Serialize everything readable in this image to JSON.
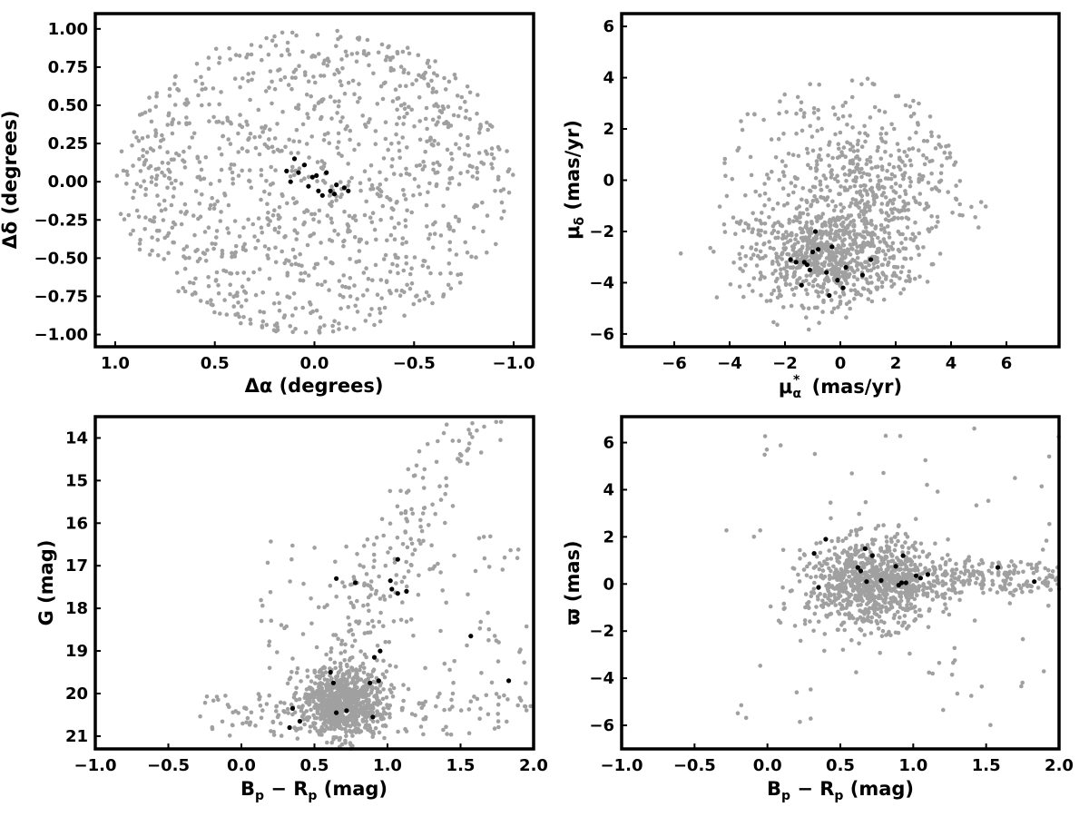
{
  "chart_data": [
    {
      "type": "scatter",
      "title": "",
      "xlabel": "Δα (degrees)",
      "ylabel": "Δδ (degrees)",
      "xlim": [
        1.1,
        -1.1
      ],
      "ylim": [
        -1.08,
        1.1
      ],
      "xticks": [
        {
          "v": 1.0,
          "label": "1.0"
        },
        {
          "v": 0.5,
          "label": "0.5"
        },
        {
          "v": 0.0,
          "label": "0.0"
        },
        {
          "v": -0.5,
          "label": "−0.5"
        },
        {
          "v": -1.0,
          "label": "−1.0"
        }
      ],
      "yticks": [
        {
          "v": 1.0,
          "label": "1.00"
        },
        {
          "v": 0.75,
          "label": "0.75"
        },
        {
          "v": 0.5,
          "label": "0.50"
        },
        {
          "v": 0.25,
          "label": "0.25"
        },
        {
          "v": 0.0,
          "label": "0.00"
        },
        {
          "v": -0.25,
          "label": "−0.25"
        },
        {
          "v": -0.5,
          "label": "−0.50"
        },
        {
          "v": -0.75,
          "label": "−0.75"
        },
        {
          "v": -1.0,
          "label": "−1.00"
        }
      ],
      "grid": false,
      "series": [
        {
          "color": "#a0a0a0",
          "marker_size": 2.3,
          "approximate_distribution": {
            "shape": "uniform disk",
            "center": [
              0,
              0
            ],
            "radius": 1.0,
            "n_points": 1100
          }
        },
        {
          "color": "#000000",
          "marker_size": 2.6,
          "x": [
            0.14,
            0.12,
            0.1,
            0.08,
            0.05,
            0.03,
            0.01,
            -0.01,
            -0.02,
            -0.04,
            -0.06,
            -0.08,
            -0.1,
            -0.11,
            -0.15,
            -0.17
          ],
          "y": [
            0.07,
            0.0,
            0.15,
            0.06,
            0.11,
            -0.03,
            0.03,
            0.04,
            -0.06,
            -0.09,
            0.06,
            -0.06,
            -0.08,
            -0.02,
            -0.04,
            -0.06
          ]
        }
      ]
    },
    {
      "type": "scatter",
      "title": "",
      "xlabel": "μα* (mas/yr)",
      "ylabel": "μδ (mas/yr)",
      "xlim": [
        -7.9,
        7.9
      ],
      "ylim": [
        -6.5,
        6.5
      ],
      "xticks": [
        {
          "v": -6,
          "label": "−6"
        },
        {
          "v": -4,
          "label": "−4"
        },
        {
          "v": -2,
          "label": "−2"
        },
        {
          "v": 0,
          "label": "0"
        },
        {
          "v": 2,
          "label": "2"
        },
        {
          "v": 4,
          "label": "4"
        },
        {
          "v": 6,
          "label": "6"
        }
      ],
      "yticks": [
        {
          "v": 6,
          "label": "6"
        },
        {
          "v": 4,
          "label": "4"
        },
        {
          "v": 2,
          "label": "2"
        },
        {
          "v": 0,
          "label": "0"
        },
        {
          "v": -2,
          "label": "−2"
        },
        {
          "v": -4,
          "label": "−4"
        },
        {
          "v": -6,
          "label": "−6"
        }
      ],
      "grid": false,
      "series": [
        {
          "color": "#a0a0a0",
          "marker_size": 2.3,
          "approximate_distribution": [
            {
              "shape": "gaussian clump",
              "center": [
                -0.5,
                -3.0
              ],
              "sigma": [
                1.4,
                0.9
              ],
              "n_points": 650
            },
            {
              "shape": "gaussian clump",
              "center": [
                0.8,
                -0.5
              ],
              "sigma": [
                1.5,
                1.3
              ],
              "n_points": 350
            },
            {
              "shape": "uniform disk",
              "center": [
                0.0,
                -0.5
              ],
              "radius": 4.6,
              "ymin": -5.0,
              "n_points": 250
            }
          ]
        },
        {
          "color": "#000000",
          "marker_size": 2.6,
          "x": [
            -1.8,
            -1.6,
            -1.4,
            -1.3,
            -1.2,
            -1.1,
            -1.0,
            -0.9,
            -0.8,
            -0.5,
            -0.4,
            -0.3,
            -0.1,
            0.1,
            0.2,
            0.8,
            1.1
          ],
          "y": [
            -3.1,
            -3.2,
            -4.1,
            -3.2,
            -3.3,
            -3.5,
            -2.8,
            -2.0,
            -2.7,
            -3.6,
            -4.5,
            -2.6,
            -3.9,
            -4.2,
            -3.4,
            -3.7,
            -3.1
          ]
        }
      ]
    },
    {
      "type": "scatter",
      "title": "",
      "xlabel": "Bp − Rp (mag)",
      "ylabel": "G (mag)",
      "xlim": [
        -1.0,
        2.0
      ],
      "ylim": [
        21.3,
        13.5
      ],
      "xticks": [
        {
          "v": -1.0,
          "label": "−1.0"
        },
        {
          "v": -0.5,
          "label": "−0.5"
        },
        {
          "v": 0.0,
          "label": "0.0"
        },
        {
          "v": 0.5,
          "label": "0.5"
        },
        {
          "v": 1.0,
          "label": "1.0"
        },
        {
          "v": 1.5,
          "label": "1.5"
        },
        {
          "v": 2.0,
          "label": "2.0"
        }
      ],
      "yticks": [
        {
          "v": 21,
          "label": "21"
        },
        {
          "v": 20,
          "label": "20"
        },
        {
          "v": 19,
          "label": "19"
        },
        {
          "v": 18,
          "label": "18"
        },
        {
          "v": 17,
          "label": "17"
        },
        {
          "v": 16,
          "label": "16"
        },
        {
          "v": 15,
          "label": "15"
        },
        {
          "v": 14,
          "label": "14"
        }
      ],
      "grid": false,
      "series": [
        {
          "color": "#a0a0a0",
          "marker_size": 2.3,
          "approximate_distribution": [
            {
              "shape": "dense clump",
              "center": [
                0.7,
                20.2
              ],
              "sigma": [
                0.15,
                0.4
              ],
              "n_points": 800
            },
            {
              "shape": "faint horizontal band",
              "x_range": [
                -0.3,
                2.0
              ],
              "y_range": [
                20.0,
                21.0
              ],
              "n_points": 150
            },
            {
              "shape": "red giant branch",
              "from": [
                0.7,
                20.0
              ],
              "to": [
                1.6,
                13.8
              ],
              "n_points": 150
            },
            {
              "shape": "scattered field",
              "x_range": [
                0.1,
                2.0
              ],
              "y_range": [
                16.3,
                20.0
              ],
              "n_points": 120
            }
          ]
        },
        {
          "color": "#000000",
          "marker_size": 2.6,
          "x": [
            0.33,
            0.35,
            0.4,
            0.61,
            0.63,
            0.65,
            0.65,
            0.72,
            0.78,
            0.88,
            0.9,
            0.91,
            0.94,
            0.95,
            1.02,
            1.03,
            1.07,
            1.07,
            1.13,
            1.57,
            1.83
          ],
          "y": [
            20.8,
            20.35,
            20.65,
            19.5,
            19.75,
            17.3,
            20.45,
            20.4,
            17.4,
            19.75,
            20.55,
            19.15,
            19.7,
            19.0,
            17.35,
            17.55,
            17.65,
            16.85,
            17.6,
            18.65,
            19.7
          ]
        }
      ]
    },
    {
      "type": "scatter",
      "title": "",
      "xlabel": "Bp − Rp (mag)",
      "ylabel": "ϖ (mas)",
      "xlim": [
        -1.0,
        2.0
      ],
      "ylim": [
        -7.0,
        7.1
      ],
      "xticks": [
        {
          "v": -1.0,
          "label": "−1.0"
        },
        {
          "v": -0.5,
          "label": "−0.5"
        },
        {
          "v": 0.0,
          "label": "0.0"
        },
        {
          "v": 0.5,
          "label": "0.5"
        },
        {
          "v": 1.0,
          "label": "1.0"
        },
        {
          "v": 1.5,
          "label": "1.5"
        },
        {
          "v": 2.0,
          "label": "2.0"
        }
      ],
      "yticks": [
        {
          "v": 6,
          "label": "6"
        },
        {
          "v": 4,
          "label": "4"
        },
        {
          "v": 2,
          "label": "2"
        },
        {
          "v": 0,
          "label": "0"
        },
        {
          "v": -2,
          "label": "−2"
        },
        {
          "v": -4,
          "label": "−4"
        },
        {
          "v": -6,
          "label": "−6"
        }
      ],
      "grid": false,
      "series": [
        {
          "color": "#a0a0a0",
          "marker_size": 2.3,
          "approximate_distribution": [
            {
              "shape": "gaussian clump",
              "center": [
                0.72,
                0.0
              ],
              "sigma": [
                0.22,
                0.9
              ],
              "n_points": 850
            },
            {
              "shape": "horizontal tail",
              "x_range": [
                0.9,
                2.0
              ],
              "center_y": 0.25,
              "sigma_y": 0.4,
              "n_points": 220
            },
            {
              "shape": "scattered outliers",
              "x_range": [
                -0.3,
                2.0
              ],
              "y_range": [
                -6.2,
                6.6
              ],
              "n_points": 90
            }
          ]
        },
        {
          "color": "#000000",
          "marker_size": 2.6,
          "x": [
            0.32,
            0.35,
            0.4,
            0.62,
            0.64,
            0.67,
            0.68,
            0.72,
            0.78,
            0.88,
            0.9,
            0.92,
            0.93,
            0.95,
            1.02,
            1.05,
            1.1,
            1.58,
            1.83
          ],
          "y": [
            1.3,
            -0.15,
            1.9,
            0.7,
            0.55,
            1.5,
            0.1,
            1.2,
            0.15,
            0.75,
            -0.05,
            0.05,
            1.2,
            0.05,
            0.35,
            0.25,
            0.4,
            0.7,
            0.1
          ]
        }
      ]
    }
  ]
}
